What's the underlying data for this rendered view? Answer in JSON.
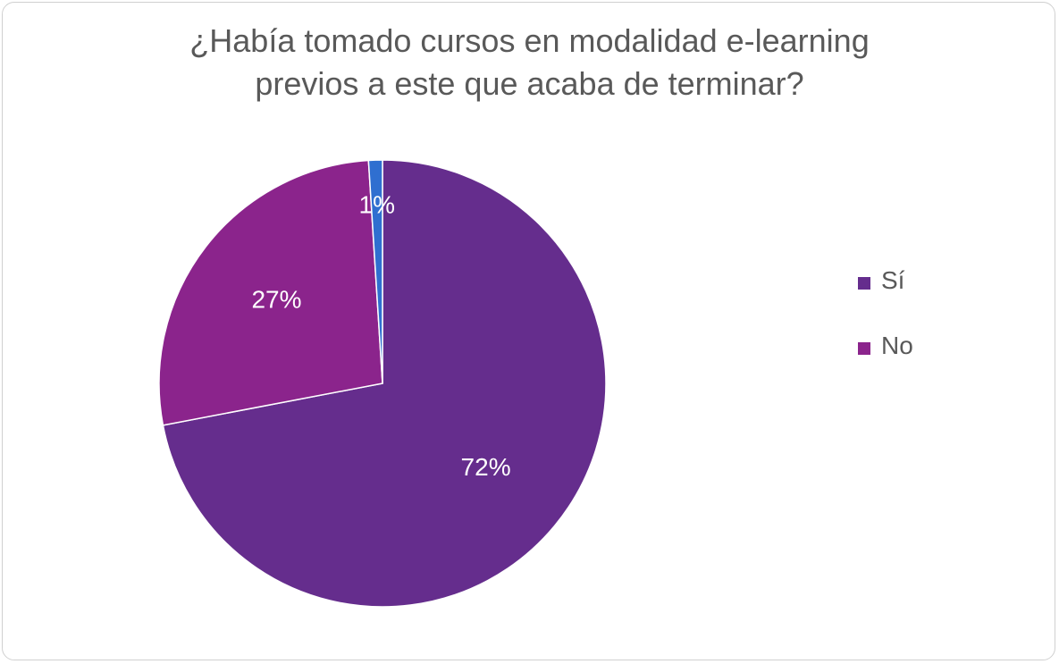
{
  "chart_data": {
    "type": "pie",
    "title_line1": "¿Había tomado cursos en modalidad e-learning",
    "title_line2": "previos a este que acaba de terminar?",
    "slices": [
      {
        "label": "Sí",
        "value": 72,
        "data_label": "72%",
        "color": "#652d8d"
      },
      {
        "label": "No",
        "value": 27,
        "data_label": "27%",
        "color": "#8b248c"
      },
      {
        "label": "",
        "value": 1,
        "data_label": "1%",
        "color": "#2f6fd0"
      }
    ],
    "legend": {
      "position": "right",
      "entries": [
        "Sí",
        "No"
      ]
    }
  }
}
